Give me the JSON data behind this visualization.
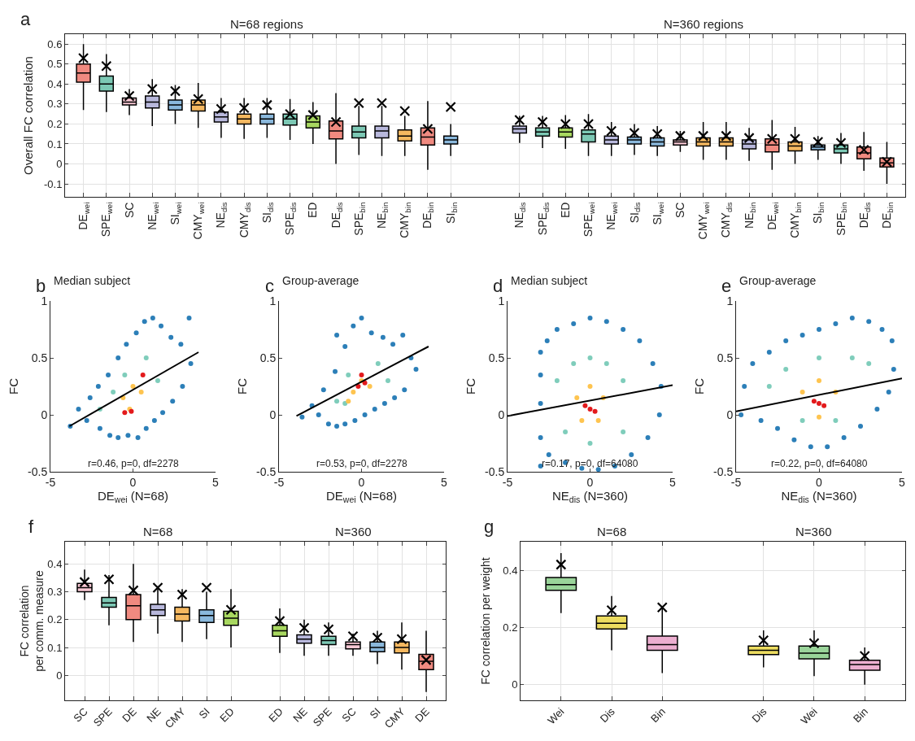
{
  "chart_data": [
    {
      "type": "box",
      "ylabel": "Overall FC correlation",
      "annotations": [
        "a",
        "N=68 regions",
        "N=360 regions"
      ],
      "categories": [
        "DE$_{wei}$",
        "SPE$_{wei}$",
        "SC",
        "NE$_{wei}$",
        "SI$_{wei}$",
        "CMY$_{wei}$",
        "NE$_{dis}$",
        "CMY$_{dis}$",
        "SI$_{dis}$",
        "SPE$_{dis}$",
        "ED",
        "DE$_{dis}$",
        "SPE$_{bin}$",
        "NE$_{bin}$",
        "CMY$_{bin}$",
        "DE$_{bin}$",
        "SI$_{bin}$",
        null,
        null,
        "NE$_{dis}$",
        "SPE$_{dis}$",
        "ED",
        "SPE$_{wei}$",
        "NE$_{wei}$",
        "SI$_{dis}$",
        "SI$_{wei}$",
        "SC",
        "CMY$_{wei}$",
        "CMY$_{dis}$",
        "NE$_{bin}$",
        "DE$_{wei}$",
        "CMY$_{bin}$",
        "SI$_{bin}$",
        "SPE$_{bin}$",
        "DE$_{dis}$",
        "DE$_{bin}$"
      ],
      "colors": [
        "#f08a80",
        "#7cc8b4",
        "#f9c8d4",
        "#b8b8dc",
        "#8ab8dc",
        "#f5b860",
        "#b8b8dc",
        "#f5b860",
        "#8ab8dc",
        "#7cc8b4",
        "#a8d860",
        "#f08a80",
        "#7cc8b4",
        "#b8b8dc",
        "#f5b860",
        "#f08a80",
        "#8ab8dc",
        null,
        null,
        "#b8b8dc",
        "#7cc8b4",
        "#a8d860",
        "#7cc8b4",
        "#b8b8dc",
        "#8ab8dc",
        "#8ab8dc",
        "#f9c8d4",
        "#f5b860",
        "#f5b860",
        "#b8b8dc",
        "#f08a80",
        "#f5b860",
        "#8ab8dc",
        "#7cc8b4",
        "#f08a80",
        "#f08a80"
      ],
      "boxes": [
        {
          "low": 0.27,
          "q1": 0.41,
          "median": 0.455,
          "q3": 0.5,
          "high": 0.6,
          "mean": 0.53
        },
        {
          "low": 0.26,
          "q1": 0.365,
          "median": 0.4,
          "q3": 0.44,
          "high": 0.55,
          "mean": 0.49
        },
        {
          "low": 0.245,
          "q1": 0.295,
          "median": 0.31,
          "q3": 0.33,
          "high": 0.375,
          "mean": 0.34
        },
        {
          "low": 0.19,
          "q1": 0.28,
          "median": 0.31,
          "q3": 0.34,
          "high": 0.425,
          "mean": 0.375
        },
        {
          "low": 0.2,
          "q1": 0.27,
          "median": 0.295,
          "q3": 0.32,
          "high": 0.395,
          "mean": 0.365
        },
        {
          "low": 0.18,
          "q1": 0.265,
          "median": 0.295,
          "q3": 0.32,
          "high": 0.405,
          "mean": 0.325
        },
        {
          "low": 0.13,
          "q1": 0.21,
          "median": 0.235,
          "q3": 0.26,
          "high": 0.33,
          "mean": 0.275
        },
        {
          "low": 0.125,
          "q1": 0.2,
          "median": 0.225,
          "q3": 0.25,
          "high": 0.33,
          "mean": 0.28
        },
        {
          "low": 0.13,
          "q1": 0.2,
          "median": 0.225,
          "q3": 0.25,
          "high": 0.33,
          "mean": 0.295
        },
        {
          "low": 0.12,
          "q1": 0.195,
          "median": 0.225,
          "q3": 0.25,
          "high": 0.325,
          "mean": 0.25
        },
        {
          "low": 0.1,
          "q1": 0.18,
          "median": 0.21,
          "q3": 0.24,
          "high": 0.31,
          "mean": 0.245
        },
        {
          "low": 0.0,
          "q1": 0.125,
          "median": 0.165,
          "q3": 0.215,
          "high": 0.355,
          "mean": 0.21
        },
        {
          "low": 0.045,
          "q1": 0.13,
          "median": 0.16,
          "q3": 0.19,
          "high": 0.29,
          "mean": 0.305
        },
        {
          "low": 0.04,
          "q1": 0.13,
          "median": 0.165,
          "q3": 0.19,
          "high": 0.29,
          "mean": 0.305
        },
        {
          "low": 0.04,
          "q1": 0.115,
          "median": 0.14,
          "q3": 0.17,
          "high": 0.24,
          "mean": 0.265
        },
        {
          "low": -0.03,
          "q1": 0.095,
          "median": 0.135,
          "q3": 0.18,
          "high": 0.315,
          "mean": 0.175
        },
        {
          "low": 0.04,
          "q1": 0.1,
          "median": 0.12,
          "q3": 0.14,
          "high": 0.2,
          "mean": 0.285
        },
        null,
        null,
        {
          "low": 0.105,
          "q1": 0.155,
          "median": 0.175,
          "q3": 0.19,
          "high": 0.24,
          "mean": 0.22
        },
        {
          "low": 0.08,
          "q1": 0.14,
          "median": 0.16,
          "q3": 0.18,
          "high": 0.24,
          "mean": 0.21
        },
        {
          "low": 0.075,
          "q1": 0.135,
          "median": 0.16,
          "q3": 0.18,
          "high": 0.245,
          "mean": 0.2
        },
        {
          "low": 0.04,
          "q1": 0.11,
          "median": 0.15,
          "q3": 0.17,
          "high": 0.25,
          "mean": 0.2
        },
        {
          "low": 0.04,
          "q1": 0.1,
          "median": 0.12,
          "q3": 0.14,
          "high": 0.21,
          "mean": 0.165
        },
        {
          "low": 0.045,
          "q1": 0.1,
          "median": 0.12,
          "q3": 0.135,
          "high": 0.2,
          "mean": 0.155
        },
        {
          "low": 0.04,
          "q1": 0.09,
          "median": 0.11,
          "q3": 0.13,
          "high": 0.19,
          "mean": 0.15
        },
        {
          "low": 0.06,
          "q1": 0.095,
          "median": 0.11,
          "q3": 0.12,
          "high": 0.165,
          "mean": 0.14
        },
        {
          "low": 0.02,
          "q1": 0.09,
          "median": 0.11,
          "q3": 0.13,
          "high": 0.21,
          "mean": 0.14
        },
        {
          "low": 0.02,
          "q1": 0.09,
          "median": 0.11,
          "q3": 0.13,
          "high": 0.21,
          "mean": 0.14
        },
        {
          "low": 0.015,
          "q1": 0.075,
          "median": 0.1,
          "q3": 0.12,
          "high": 0.18,
          "mean": 0.13
        },
        {
          "low": -0.03,
          "q1": 0.06,
          "median": 0.095,
          "q3": 0.125,
          "high": 0.22,
          "mean": 0.125
        },
        {
          "low": 0.0,
          "q1": 0.065,
          "median": 0.09,
          "q3": 0.11,
          "high": 0.185,
          "mean": 0.125
        },
        {
          "low": 0.02,
          "q1": 0.07,
          "median": 0.085,
          "q3": 0.095,
          "high": 0.14,
          "mean": 0.11
        },
        {
          "low": 0.0,
          "q1": 0.055,
          "median": 0.075,
          "q3": 0.095,
          "high": 0.155,
          "mean": 0.105
        },
        {
          "low": -0.035,
          "q1": 0.025,
          "median": 0.055,
          "q3": 0.085,
          "high": 0.16,
          "mean": 0.07
        },
        {
          "low": -0.1,
          "q1": -0.015,
          "median": 0.005,
          "q3": 0.03,
          "high": 0.11,
          "mean": 0.01
        }
      ],
      "ylim": [
        -0.165,
        0.65
      ],
      "yticks": [
        -0.1,
        0,
        0.1,
        0.2,
        0.3,
        0.4,
        0.5,
        0.6
      ],
      "grid": true,
      "marker": "cross"
    },
    {
      "type": "scatter",
      "title": "Median subject",
      "xlabel": "DE$_{wei}$ (N=68)",
      "ylabel": "FC",
      "annotations": [
        "b",
        "r=0.46, p=0, df=2278"
      ],
      "series": [
        {
          "color": "#2c7fb8",
          "x": [
            -3.8,
            -3.3,
            -2.8,
            -2.6,
            -2.1,
            -2,
            -1.5,
            -1.4,
            -0.9,
            -0.9,
            -0.4,
            -0.3,
            0.2,
            0.3,
            0.7,
            0.8,
            1.2,
            1.3,
            1.7,
            1.8,
            2.3,
            2.4,
            2.9,
            3,
            3.4,
            3.5
          ],
          "values": [
            -0.1,
            0.05,
            -0.05,
            0.15,
            0.25,
            -0.12,
            0.35,
            -0.18,
            0.5,
            -0.2,
            0.62,
            -0.18,
            0.72,
            -0.2,
            0.82,
            -0.12,
            0.85,
            -0.05,
            0.78,
            0.02,
            0.68,
            0.12,
            0.62,
            0.25,
            0.85,
            0.45
          ]
        },
        {
          "color": "#7fcdbb",
          "x": [
            -2,
            -1.2,
            0.8,
            1.5,
            -0.5
          ],
          "values": [
            0.05,
            0.2,
            0.5,
            0.3,
            0.35
          ]
        },
        {
          "color": "#fec44f",
          "x": [
            -0.6,
            0,
            0.5,
            -0.2
          ],
          "values": [
            0.15,
            0.25,
            0.2,
            0.05
          ]
        },
        {
          "color": "#e31a1c",
          "x": [
            -0.5,
            -0.1,
            0.6
          ],
          "values": [
            0.02,
            0.03,
            0.35
          ]
        },
        {
          "type": "line",
          "marker": "none",
          "color": "#000000",
          "x": [
            -3.85,
            3.97
          ],
          "values": [
            -0.1,
            0.55
          ]
        }
      ],
      "xlim": [
        -5,
        5
      ],
      "xticks": [
        -5,
        0,
        5
      ],
      "ylim": [
        -0.5,
        1
      ],
      "yticks": [
        -0.5,
        0,
        0.5,
        1
      ],
      "grid": false,
      "marker": "circle"
    },
    {
      "type": "scatter",
      "title": "Group-average",
      "xlabel": "DE$_{wei}$ (N=68)",
      "ylabel": "FC",
      "annotations": [
        "c",
        "r=0.53, p=0, df=2278"
      ],
      "series": [
        {
          "color": "#2c7fb8",
          "x": [
            -3.6,
            -3,
            -2.6,
            -2.3,
            -2,
            -1.6,
            -1.5,
            -1,
            -1,
            -0.5,
            -0.4,
            0,
            0.2,
            0.6,
            0.8,
            1.3,
            1.4,
            1.9,
            2,
            2.5,
            2.6,
            3,
            3.3,
            -1.5
          ],
          "values": [
            -0.02,
            0.08,
            0,
            0.22,
            -0.08,
            0.38,
            -0.1,
            0.6,
            -0.08,
            0.78,
            -0.05,
            0.85,
            0,
            0.72,
            0.05,
            0.68,
            0.1,
            0.62,
            0.15,
            0.7,
            0.22,
            0.5,
            0.4,
            0.7
          ]
        },
        {
          "color": "#7fcdbb",
          "x": [
            -1.5,
            -0.8,
            1,
            1.6,
            -1
          ],
          "values": [
            0.12,
            0.35,
            0.45,
            0.3,
            0.1
          ]
        },
        {
          "color": "#fec44f",
          "x": [
            -0.5,
            0,
            0.5,
            -0.8
          ],
          "values": [
            0.2,
            0.3,
            0.25,
            0.12
          ]
        },
        {
          "color": "#e31a1c",
          "x": [
            0.2,
            0,
            -0.2
          ],
          "values": [
            0.28,
            0.35,
            0.25
          ]
        },
        {
          "type": "line",
          "marker": "none",
          "color": "#000000",
          "x": [
            -3.94,
            4.06
          ],
          "values": [
            -0.01,
            0.6
          ]
        }
      ],
      "xlim": [
        -5,
        5
      ],
      "xticks": [
        -5,
        0,
        5
      ],
      "ylim": [
        -0.5,
        1
      ],
      "yticks": [
        -0.5,
        0,
        0.5,
        1
      ],
      "grid": false,
      "marker": "circle"
    },
    {
      "type": "scatter",
      "title": "Median subject",
      "xlabel": "NE$_{dis}$ (N=360)",
      "ylabel": "FC",
      "annotations": [
        "d",
        "r=0.17, p=0, df=64080"
      ],
      "series": [
        {
          "color": "#2c7fb8",
          "x": [
            -3,
            -3,
            -3,
            -3,
            -3,
            -2.6,
            -2,
            -1,
            0,
            1,
            2,
            3,
            3.8,
            4.3,
            4.2,
            3.5,
            2.5,
            1.5,
            0.5,
            -0.5,
            -1.5,
            -2.5
          ],
          "values": [
            -0.45,
            -0.2,
            0.1,
            0.35,
            0.55,
            0.65,
            0.75,
            0.8,
            0.85,
            0.82,
            0.75,
            0.65,
            0.45,
            0.25,
            0,
            -0.2,
            -0.35,
            -0.45,
            -0.48,
            -0.47,
            -0.42,
            -0.35
          ]
        },
        {
          "color": "#7fcdbb",
          "x": [
            -2,
            -1,
            1,
            2,
            2,
            -1.5,
            0,
            0
          ],
          "values": [
            0.3,
            0.45,
            0.45,
            0.3,
            -0.15,
            -0.15,
            -0.25,
            0.5
          ]
        },
        {
          "color": "#fec44f",
          "x": [
            -0.8,
            0.8,
            0,
            0.5,
            -0.5
          ],
          "values": [
            0.15,
            0.15,
            0.25,
            -0.05,
            -0.05
          ]
        },
        {
          "color": "#e31a1c",
          "x": [
            0,
            -0.3,
            0.3
          ],
          "values": [
            0.05,
            0.08,
            0.03
          ]
        },
        {
          "type": "line",
          "marker": "none",
          "color": "#000000",
          "x": [
            -5,
            5
          ],
          "values": [
            -0.01,
            0.26
          ]
        }
      ],
      "xlim": [
        -5,
        5
      ],
      "xticks": [
        -5,
        0,
        5
      ],
      "ylim": [
        -0.5,
        1
      ],
      "yticks": [
        -0.5,
        0,
        0.5,
        1
      ],
      "grid": false,
      "marker": "circle"
    },
    {
      "type": "scatter",
      "title": "Group-average",
      "xlabel": "NE$_{dis}$ (N=360)",
      "ylabel": "FC",
      "annotations": [
        "e",
        "r=0.22, p=0, df=64080"
      ],
      "series": [
        {
          "color": "#2c7fb8",
          "x": [
            -4.7,
            -4.5,
            -4,
            -3,
            -2,
            -1,
            0,
            1,
            2,
            3,
            3.8,
            4.4,
            4.5,
            4.2,
            3.5,
            2.5,
            1.5,
            0.5,
            -0.5,
            -1.5,
            -2.5,
            -3.5
          ],
          "values": [
            0,
            0.25,
            0.45,
            0.55,
            0.65,
            0.7,
            0.75,
            0.8,
            0.85,
            0.82,
            0.75,
            0.65,
            0.4,
            0.2,
            0.05,
            -0.1,
            -0.2,
            -0.28,
            -0.28,
            -0.22,
            -0.12,
            -0.05
          ]
        },
        {
          "color": "#7fcdbb",
          "x": [
            -3,
            -2,
            2,
            3,
            1,
            -1,
            0
          ],
          "values": [
            0.25,
            0.4,
            0.5,
            0.45,
            -0.05,
            -0.05,
            0.5
          ]
        },
        {
          "color": "#fec44f",
          "x": [
            -1,
            1,
            0,
            0
          ],
          "values": [
            0.2,
            0.2,
            0.3,
            -0.02
          ]
        },
        {
          "color": "#e31a1c",
          "x": [
            0,
            -0.3,
            0.3
          ],
          "values": [
            0.1,
            0.12,
            0.08
          ]
        },
        {
          "type": "line",
          "marker": "none",
          "color": "#000000",
          "x": [
            -5,
            5
          ],
          "values": [
            0.03,
            0.32
          ]
        }
      ],
      "xlim": [
        -5,
        5
      ],
      "xticks": [
        -5,
        0,
        5
      ],
      "ylim": [
        -0.5,
        1
      ],
      "yticks": [
        -0.5,
        0,
        0.5,
        1
      ],
      "grid": false,
      "marker": "circle"
    },
    {
      "type": "box",
      "ylabel": "FC correlation\nper comm. measure",
      "annotations": [
        "f",
        "N=68",
        "N=360"
      ],
      "categories": [
        "SC",
        "SPE",
        "DE",
        "NE",
        "CMY",
        "SI",
        "ED",
        null,
        "ED",
        "NE",
        "SPE",
        "SC",
        "SI",
        "CMY",
        "DE"
      ],
      "colors": [
        "#f9c8d4",
        "#7cc8b4",
        "#f08a80",
        "#b8b8dc",
        "#f5b860",
        "#8ab8dc",
        "#a8d860",
        null,
        "#a8d860",
        "#b8b8dc",
        "#7cc8b4",
        "#f9c8d4",
        "#8ab8dc",
        "#f5b860",
        "#f08a80"
      ],
      "boxes": [
        {
          "low": 0.27,
          "q1": 0.3,
          "median": 0.315,
          "q3": 0.33,
          "high": 0.38,
          "mean": 0.335
        },
        {
          "low": 0.18,
          "q1": 0.245,
          "median": 0.26,
          "q3": 0.28,
          "high": 0.36,
          "mean": 0.345
        },
        {
          "low": 0.12,
          "q1": 0.2,
          "median": 0.25,
          "q3": 0.29,
          "high": 0.4,
          "mean": 0.305
        },
        {
          "low": 0.15,
          "q1": 0.215,
          "median": 0.235,
          "q3": 0.255,
          "high": 0.32,
          "mean": 0.315
        },
        {
          "low": 0.12,
          "q1": 0.195,
          "median": 0.22,
          "q3": 0.245,
          "high": 0.31,
          "mean": 0.29
        },
        {
          "low": 0.13,
          "q1": 0.19,
          "median": 0.215,
          "q3": 0.235,
          "high": 0.3,
          "mean": 0.315
        },
        {
          "low": 0.1,
          "q1": 0.18,
          "median": 0.205,
          "q3": 0.23,
          "high": 0.31,
          "mean": 0.235
        },
        null,
        {
          "low": 0.08,
          "q1": 0.14,
          "median": 0.16,
          "q3": 0.18,
          "high": 0.24,
          "mean": 0.195
        },
        {
          "low": 0.07,
          "q1": 0.115,
          "median": 0.13,
          "q3": 0.145,
          "high": 0.2,
          "mean": 0.17
        },
        {
          "low": 0.07,
          "q1": 0.11,
          "median": 0.125,
          "q3": 0.14,
          "high": 0.19,
          "mean": 0.165
        },
        {
          "low": 0.07,
          "q1": 0.095,
          "median": 0.11,
          "q3": 0.12,
          "high": 0.15,
          "mean": 0.14
        },
        {
          "low": 0.04,
          "q1": 0.085,
          "median": 0.1,
          "q3": 0.12,
          "high": 0.16,
          "mean": 0.135
        },
        {
          "low": 0.02,
          "q1": 0.08,
          "median": 0.1,
          "q3": 0.12,
          "high": 0.19,
          "mean": 0.13
        },
        {
          "low": -0.06,
          "q1": 0.02,
          "median": 0.05,
          "q3": 0.075,
          "high": 0.16,
          "mean": 0.055
        }
      ],
      "ylim": [
        -0.09,
        0.48
      ],
      "yticks": [
        0,
        0.1,
        0.2,
        0.3,
        0.4
      ],
      "grid": true,
      "marker": "cross"
    },
    {
      "type": "box",
      "ylabel": "FC correlation per weight",
      "annotations": [
        "g",
        "N=68",
        "N=360"
      ],
      "categories": [
        "Wei",
        "Dis",
        "Bin",
        null,
        "Dis",
        "Wei",
        "Bin"
      ],
      "colors": [
        "#9ad49a",
        "#ecdc60",
        "#ecaed0",
        null,
        "#ecdc60",
        "#9ad49a",
        "#ecaed0"
      ],
      "boxes": [
        {
          "low": 0.25,
          "q1": 0.33,
          "median": 0.35,
          "q3": 0.375,
          "high": 0.46,
          "mean": 0.42
        },
        {
          "low": 0.12,
          "q1": 0.195,
          "median": 0.215,
          "q3": 0.24,
          "high": 0.31,
          "mean": 0.26
        },
        {
          "low": 0.04,
          "q1": 0.12,
          "median": 0.14,
          "q3": 0.17,
          "high": 0.27,
          "mean": 0.27
        },
        null,
        {
          "low": 0.06,
          "q1": 0.105,
          "median": 0.12,
          "q3": 0.135,
          "high": 0.19,
          "mean": 0.155
        },
        {
          "low": 0.03,
          "q1": 0.09,
          "median": 0.11,
          "q3": 0.135,
          "high": 0.19,
          "mean": 0.145
        },
        {
          "low": 0.0,
          "q1": 0.05,
          "median": 0.07,
          "q3": 0.085,
          "high": 0.13,
          "mean": 0.1
        }
      ],
      "ylim": [
        -0.055,
        0.5
      ],
      "yticks": [
        0,
        0.2,
        0.4
      ],
      "grid": true,
      "marker": "cross"
    }
  ]
}
